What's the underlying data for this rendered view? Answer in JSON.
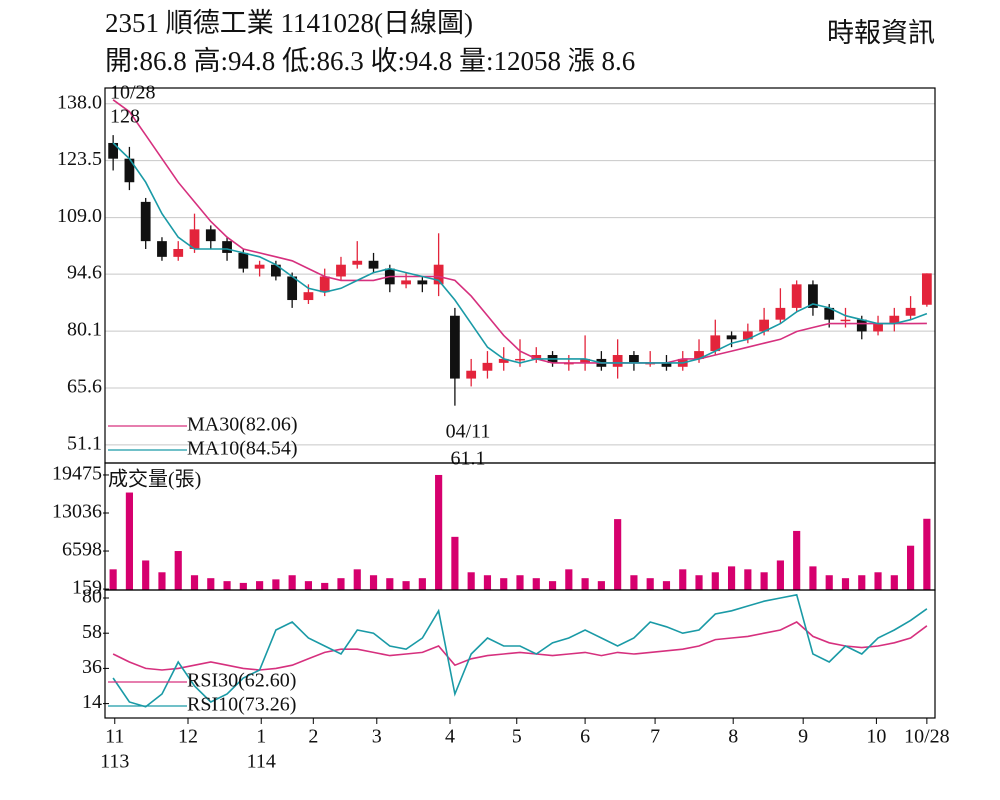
{
  "chart_data": [
    {
      "type": "candlestick",
      "title": "2351  順德工業 1141028(日線圖)",
      "subtitle": "開:86.8 高:94.8 低:86.3 收:94.8 量:12058 漲 8.6",
      "source": "時報資訊",
      "ylim": [
        46.5,
        142
      ],
      "grid": true,
      "yticks": [
        {
          "value": 138,
          "label": "138.0"
        },
        123.5,
        {
          "value": 109,
          "label": "109.0"
        },
        94.6,
        80.1,
        65.6,
        51.1
      ],
      "up_color": "#e3243b",
      "down_color": "#111111",
      "open": [
        128,
        124,
        113,
        103,
        99,
        101,
        106,
        103,
        100,
        96,
        97,
        94,
        88,
        90,
        94,
        97,
        98,
        96,
        92,
        93,
        92,
        84,
        68,
        70,
        72,
        73,
        73,
        74,
        72,
        72,
        73,
        71,
        74,
        72,
        72,
        71,
        73,
        75,
        79,
        78,
        80,
        83,
        86,
        92,
        86,
        83,
        83,
        80,
        82,
        84,
        86.8
      ],
      "high": [
        130,
        127,
        114,
        104,
        103,
        110,
        107,
        104,
        101,
        98,
        98,
        95,
        92,
        96,
        99,
        103,
        100,
        97,
        95,
        94,
        105,
        86,
        73,
        75,
        76,
        78,
        76,
        75,
        74,
        79,
        75,
        78,
        75,
        75,
        74,
        75,
        78,
        83,
        80,
        82,
        86,
        91,
        93,
        93,
        87,
        86,
        84,
        84,
        86,
        89,
        94.8
      ],
      "low": [
        121,
        116,
        101,
        98,
        98,
        100,
        101,
        98,
        95,
        94,
        93,
        86,
        87,
        89,
        93,
        96,
        95,
        90,
        91,
        90,
        89,
        61.1,
        66,
        68,
        70,
        71,
        72,
        71,
        70,
        70,
        70,
        68,
        70,
        71,
        70,
        70,
        72,
        74,
        76,
        77,
        79,
        82,
        85,
        84,
        81,
        81,
        78,
        79,
        80,
        83,
        86.3
      ],
      "close": [
        124,
        118,
        103,
        99,
        101,
        106,
        103,
        100,
        96,
        97,
        94,
        88,
        90,
        94,
        97,
        98,
        96,
        92,
        93,
        92,
        97,
        68,
        70,
        72,
        73,
        73,
        74,
        72,
        72,
        73,
        71,
        74,
        72,
        72,
        71,
        73,
        75,
        79,
        78,
        80,
        83,
        86,
        92,
        86,
        83,
        83,
        80,
        82,
        84,
        86,
        94.8
      ],
      "lines": [
        {
          "name": "MA30(82.06)",
          "color": "#d6307e",
          "values": [
            139,
            136,
            130,
            124,
            118,
            113,
            108,
            104,
            101,
            100,
            99,
            98,
            96,
            94,
            93,
            93,
            93,
            94,
            94,
            94,
            94,
            93,
            89,
            84,
            79,
            75,
            73,
            72,
            72,
            72,
            72,
            72,
            72,
            72,
            72,
            73,
            73,
            74,
            75,
            76,
            77,
            78,
            80,
            81,
            82,
            82,
            82,
            82,
            82,
            82,
            82.06
          ]
        },
        {
          "name": "MA10(84.54)",
          "color": "#1a9aa6",
          "values": [
            128,
            124,
            118,
            110,
            104,
            101,
            101,
            101,
            100,
            99,
            97,
            94,
            91,
            90,
            91,
            93,
            95,
            96,
            95,
            94,
            93,
            88,
            82,
            76,
            73,
            72,
            73,
            73,
            73,
            73,
            72,
            72,
            72,
            72,
            72,
            72,
            73,
            75,
            77,
            78,
            80,
            82,
            85,
            87,
            86,
            84,
            83,
            82,
            82,
            83,
            84.54
          ]
        }
      ],
      "annotations": [
        "10/28",
        "128",
        "04/11",
        "61.1"
      ]
    },
    {
      "type": "bar",
      "title": "成交量(張)",
      "color": "#d6006e",
      "ylim": [
        0,
        21500
      ],
      "yticks": [
        19475,
        13036,
        6598,
        159
      ],
      "values": [
        3500,
        16500,
        5000,
        3000,
        6598,
        2500,
        2000,
        1500,
        1200,
        1500,
        1800,
        2500,
        1500,
        1200,
        2000,
        3500,
        2500,
        2000,
        1500,
        2000,
        19475,
        9000,
        3000,
        2500,
        2000,
        2500,
        2000,
        1500,
        3500,
        2000,
        1500,
        12000,
        2500,
        2000,
        1500,
        3500,
        2500,
        3000,
        4000,
        3500,
        3000,
        5000,
        10000,
        4000,
        2500,
        2000,
        2500,
        3000,
        2500,
        7500,
        12058
      ]
    },
    {
      "type": "line",
      "ylim": [
        5,
        85
      ],
      "yticks": [
        80,
        58,
        36,
        14
      ],
      "series": [
        {
          "name": "RSI30(62.60)",
          "color": "#d6307e",
          "values": [
            45,
            40,
            36,
            35,
            36,
            38,
            40,
            38,
            36,
            35,
            36,
            38,
            42,
            46,
            48,
            48,
            46,
            44,
            45,
            46,
            50,
            38,
            42,
            44,
            45,
            46,
            45,
            44,
            45,
            46,
            44,
            46,
            45,
            46,
            47,
            48,
            50,
            54,
            55,
            56,
            58,
            60,
            65,
            56,
            52,
            50,
            49,
            50,
            52,
            55,
            62.6
          ]
        },
        {
          "name": "RSI10(73.26)",
          "color": "#1a9aa6",
          "values": [
            30,
            15,
            12,
            20,
            40,
            25,
            15,
            20,
            30,
            35,
            60,
            65,
            55,
            50,
            45,
            60,
            58,
            50,
            48,
            55,
            72,
            20,
            45,
            55,
            50,
            50,
            45,
            52,
            55,
            60,
            55,
            50,
            55,
            65,
            62,
            58,
            60,
            70,
            72,
            75,
            78,
            80,
            82,
            45,
            40,
            50,
            45,
            55,
            60,
            66,
            73.26
          ]
        }
      ],
      "xlim": [
        -0.5,
        50.5
      ],
      "xticks": [
        {
          "value": 0.1,
          "label": "11"
        },
        {
          "value": 4.6,
          "label": "12"
        },
        {
          "value": 9.1,
          "label": "1"
        },
        {
          "value": 12.3,
          "label": "2"
        },
        {
          "value": 16.2,
          "label": "3"
        },
        {
          "value": 20.7,
          "label": "4"
        },
        {
          "value": 24.8,
          "label": "5"
        },
        {
          "value": 29.0,
          "label": "6"
        },
        {
          "value": 33.3,
          "label": "7"
        },
        {
          "value": 38.1,
          "label": "8"
        },
        {
          "value": 42.4,
          "label": "9"
        },
        {
          "value": 46.9,
          "label": "10"
        },
        {
          "value": 50.0,
          "label": "10/28"
        }
      ],
      "year_ticks": [
        {
          "value": 0.1,
          "label": "113"
        },
        {
          "value": 9.1,
          "label": "114"
        }
      ]
    }
  ]
}
